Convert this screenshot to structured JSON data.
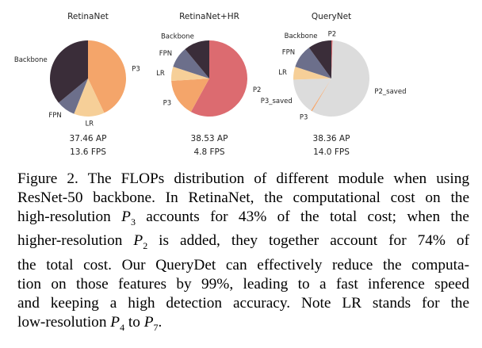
{
  "colors": {
    "Backbone": "#3a2d39",
    "FPN": "#6c6f8b",
    "LR": "#f6cf98",
    "P3": "#f4a56a",
    "P2": "#dc6b70",
    "P2_saved": "#dcdcdc",
    "P3_saved": "#dcdcdc"
  },
  "chart_data": [
    {
      "type": "pie",
      "title": "RetinaNet",
      "unit": "percent of FLOPs (estimated)",
      "start": "top",
      "direction": "clockwise",
      "slices": [
        {
          "label": "P3",
          "value": 43
        },
        {
          "label": "LR",
          "value": 13
        },
        {
          "label": "FPN",
          "value": 8
        },
        {
          "label": "Backbone",
          "value": 36
        }
      ],
      "annotations": [
        "37.46 AP",
        "13.6 FPS"
      ]
    },
    {
      "type": "pie",
      "title": "RetinaNet+HR",
      "unit": "percent of FLOPs (estimated)",
      "start": "top",
      "direction": "clockwise",
      "slices": [
        {
          "label": "P2",
          "value": 58
        },
        {
          "label": "P3",
          "value": 16
        },
        {
          "label": "LR",
          "value": 6
        },
        {
          "label": "FPN",
          "value": 9
        },
        {
          "label": "Backbone",
          "value": 11
        }
      ],
      "annotations": [
        "38.53 AP",
        "4.8 FPS"
      ]
    },
    {
      "type": "pie",
      "title": "QueryNet",
      "unit": "percent of FLOPs (estimated)",
      "start": "top",
      "direction": "clockwise",
      "slices": [
        {
          "label": "P2",
          "value": 0.5
        },
        {
          "label": "P2_saved",
          "value": 58
        },
        {
          "label": "P3",
          "value": 0.5
        },
        {
          "label": "P3_saved",
          "value": 15.5
        },
        {
          "label": "LR",
          "value": 5.5
        },
        {
          "label": "FPN",
          "value": 10
        },
        {
          "label": "Backbone",
          "value": 10
        }
      ],
      "annotations": [
        "38.36 AP",
        "14.0 FPS"
      ]
    }
  ],
  "caption": {
    "lines": [
      [
        "Figure 2. The FLOPs distribution of different module when using"
      ],
      [
        "ResNet-50 backbone. In RetinaNet, the computational cost on the"
      ],
      [
        "high-resolution ",
        {
          "v": "P",
          "s": "3"
        },
        " accounts for 43% of the total cost; when the"
      ],
      [
        "higher-resolution ",
        {
          "v": "P",
          "s": "2"
        },
        " is added, they together account for 74% of"
      ],
      [
        "the total cost. Our QueryDet can effectively reduce the computa-"
      ],
      [
        "tion on those features by 99%, leading to a fast inference speed"
      ],
      [
        "and keeping a high detection accuracy.  Note LR stands for the"
      ],
      [
        "low-resolution ",
        {
          "v": "P",
          "s": "4"
        },
        " to ",
        {
          "v": "P",
          "s": "7"
        },
        "."
      ]
    ]
  }
}
